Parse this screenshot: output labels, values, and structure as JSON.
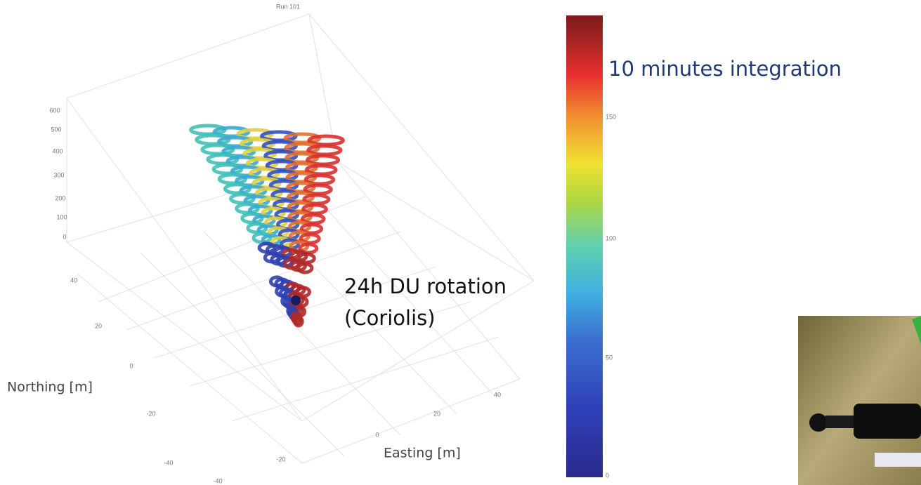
{
  "figure": {
    "title": "Run 101",
    "z_ticks": [
      "0",
      "100",
      "200",
      "300",
      "400",
      "500",
      "600"
    ],
    "northing_label": "Northing [m]",
    "northing_ticks": [
      "40",
      "20",
      "0",
      "-20",
      "-40"
    ],
    "easting_label": "Easting [m]",
    "easting_ticks": [
      "-40",
      "-20",
      "0",
      "20",
      "40"
    ],
    "annotation": [
      "24h DU rotation",
      "(Coriolis)"
    ]
  },
  "colorbar": {
    "ticks": [
      "0",
      "50",
      "100",
      "150"
    ]
  },
  "caption": "10 minutes integration"
}
